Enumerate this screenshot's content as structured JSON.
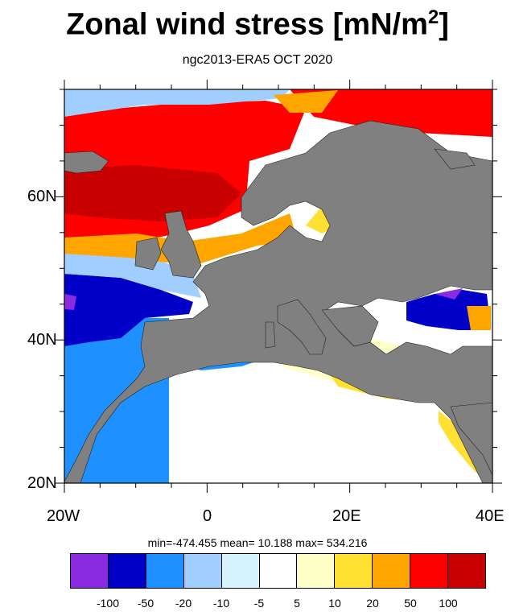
{
  "title": "Zonal wind stress [mN/m",
  "title_sup": "2",
  "title_end": "]",
  "subtitle": "ngc2013-ERA5  OCT 2020",
  "lat_labels": [
    "60N",
    "40N",
    "20N"
  ],
  "lon_labels": [
    "20W",
    "0",
    "20E",
    "40E"
  ],
  "stats": "min=-474.455  mean=  10.188  max= 534.216",
  "colorbar": {
    "colors": [
      "#8a2be2",
      "#0000c8",
      "#1e90ff",
      "#a0cfff",
      "#d6f3ff",
      "#ffffff",
      "#ffffc8",
      "#ffe033",
      "#ffa500",
      "#ff0000",
      "#c80000"
    ],
    "labels": [
      "-100",
      "-50",
      "-20",
      "-10",
      "-5",
      "5",
      "10",
      "20",
      "50",
      "100"
    ]
  },
  "map_colors": {
    "land": "#808080",
    "ocean_default": "#ffffff"
  }
}
